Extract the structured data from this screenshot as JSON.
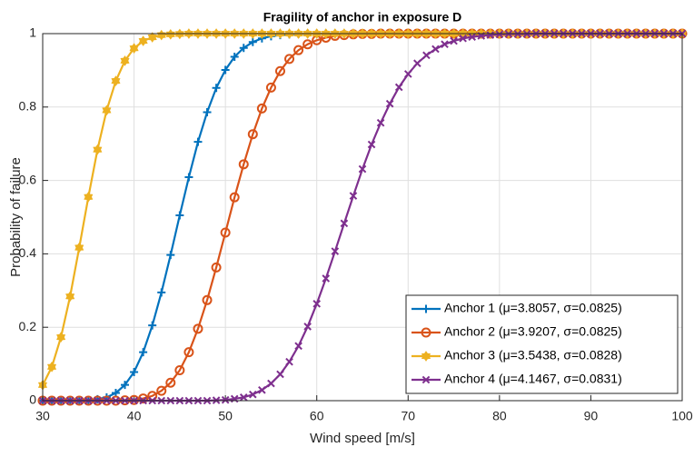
{
  "chart_data": {
    "type": "line",
    "title": "Fragility of anchor in exposure D",
    "xlabel": "Wind speed [m/s]",
    "ylabel": "Probability of failure",
    "x": [
      30,
      31,
      32,
      33,
      34,
      35,
      36,
      37,
      38,
      39,
      40,
      41,
      42,
      43,
      44,
      45,
      46,
      47,
      48,
      49,
      50,
      51,
      52,
      53,
      54,
      55,
      56,
      57,
      58,
      59,
      60,
      61,
      62,
      63,
      64,
      65,
      66,
      67,
      68,
      69,
      70,
      71,
      72,
      73,
      74,
      75,
      76,
      77,
      78,
      79,
      80,
      81,
      82,
      83,
      84,
      85,
      86,
      87,
      88,
      89,
      90,
      91,
      92,
      93,
      94,
      95,
      96,
      97,
      98,
      99,
      100
    ],
    "series": [
      {
        "name": "Anchor 1 (μ=3.8057, σ=0.0825)",
        "color": "#0072BD",
        "marker": "plus",
        "values": [
          0,
          0,
          0,
          0,
          0,
          0.001,
          0.004,
          0.009,
          0.021,
          0.043,
          0.078,
          0.132,
          0.205,
          0.295,
          0.397,
          0.505,
          0.609,
          0.705,
          0.786,
          0.852,
          0.901,
          0.937,
          0.961,
          0.977,
          0.987,
          0.993,
          0.996,
          0.998,
          0.999,
          1,
          1,
          1,
          1,
          1,
          1,
          1,
          1,
          1,
          1,
          1,
          1,
          1,
          1,
          1,
          1,
          1,
          1,
          1,
          1,
          1,
          1,
          1,
          1,
          1,
          1,
          1,
          1,
          1,
          1,
          1,
          1,
          1,
          1,
          1,
          1,
          1,
          1,
          1,
          1,
          1,
          1
        ]
      },
      {
        "name": "Anchor 2 (μ=3.9207, σ=0.0825)",
        "color": "#D95319",
        "marker": "circle",
        "values": [
          0,
          0,
          0,
          0,
          0,
          0,
          0,
          0,
          0,
          0.001,
          0.002,
          0.006,
          0.013,
          0.027,
          0.049,
          0.083,
          0.132,
          0.196,
          0.274,
          0.363,
          0.458,
          0.554,
          0.644,
          0.726,
          0.796,
          0.853,
          0.898,
          0.931,
          0.955,
          0.971,
          0.982,
          0.989,
          0.994,
          0.996,
          0.998,
          0.999,
          0.999,
          1,
          1,
          1,
          1,
          1,
          1,
          1,
          1,
          1,
          1,
          1,
          1,
          1,
          1,
          1,
          1,
          1,
          1,
          1,
          1,
          1,
          1,
          1,
          1,
          1,
          1,
          1,
          1,
          1,
          1,
          1,
          1,
          1,
          1
        ]
      },
      {
        "name": "Anchor 3 (μ=3.5438, σ=0.0828)",
        "color": "#EDB120",
        "marker": "hexagram",
        "values": [
          0.0425,
          0.092,
          0.173,
          0.284,
          0.417,
          0.555,
          0.684,
          0.791,
          0.871,
          0.926,
          0.96,
          0.98,
          0.99,
          0.996,
          0.998,
          0.999,
          1,
          1,
          1,
          1,
          1,
          1,
          1,
          1,
          1,
          1,
          1,
          1,
          1,
          1,
          1,
          1,
          1,
          1,
          1,
          1,
          1,
          1,
          1,
          1,
          1,
          1,
          1,
          1,
          1,
          1,
          1,
          1,
          1,
          1,
          1,
          1,
          1,
          1,
          1,
          1,
          1,
          1,
          1,
          1,
          1,
          1,
          1,
          1,
          1,
          1,
          1,
          1,
          1,
          1,
          1
        ]
      },
      {
        "name": "Anchor 4 (μ=4.1467, σ=0.0831)",
        "color": "#7E2F8E",
        "marker": "cross",
        "values": [
          0,
          0,
          0,
          0,
          0,
          0,
          0,
          0,
          0,
          0,
          0,
          0,
          0,
          0,
          0,
          0,
          0,
          0,
          0,
          0.001,
          0.002,
          0.005,
          0.009,
          0.017,
          0.029,
          0.047,
          0.072,
          0.106,
          0.149,
          0.202,
          0.264,
          0.333,
          0.407,
          0.483,
          0.558,
          0.631,
          0.698,
          0.757,
          0.809,
          0.854,
          0.89,
          0.919,
          0.941,
          0.958,
          0.971,
          0.98,
          0.987,
          0.991,
          0.994,
          0.996,
          0.998,
          0.999,
          0.999,
          0.999,
          1,
          1,
          1,
          1,
          1,
          1,
          1,
          1,
          1,
          1,
          1,
          1,
          1,
          1,
          1,
          1,
          1
        ]
      }
    ],
    "xlim": [
      30,
      100
    ],
    "xticks": [
      30,
      40,
      50,
      60,
      70,
      80,
      90,
      100
    ],
    "ylim": [
      0,
      1
    ],
    "yticks": [
      0,
      0.2,
      0.4,
      0.6,
      0.8,
      1
    ],
    "grid": true,
    "legend": "lower-right"
  }
}
